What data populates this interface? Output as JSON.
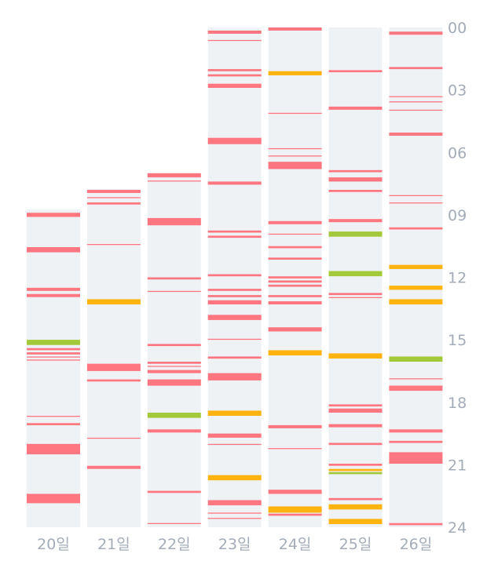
{
  "chart_data": {
    "type": "timeline",
    "y_axis": {
      "ticks": [
        "00",
        "03",
        "06",
        "09",
        "12",
        "15",
        "18",
        "21",
        "24"
      ],
      "range_hours": [
        0,
        24
      ],
      "position": "right"
    },
    "colors": {
      "background": "#eff2f5",
      "red": "#fe7680",
      "orange": "#ffb30f",
      "green": "#a3c93a",
      "label": "#a3acb8"
    },
    "columns": [
      {
        "label": "20일",
        "data_start": 8.75,
        "events": [
          {
            "start": 8.9,
            "end": 9.1,
            "color": "red"
          },
          {
            "start": 10.55,
            "end": 10.8,
            "color": "red"
          },
          {
            "start": 12.5,
            "end": 12.65,
            "color": "red"
          },
          {
            "start": 12.8,
            "end": 12.95,
            "color": "red"
          },
          {
            "start": 15.0,
            "end": 15.25,
            "color": "green"
          },
          {
            "start": 15.4,
            "end": 15.5,
            "color": "red"
          },
          {
            "start": 15.6,
            "end": 15.7,
            "color": "red"
          },
          {
            "start": 15.8,
            "end": 15.85,
            "color": "red"
          },
          {
            "start": 15.95,
            "end": 16.0,
            "color": "red"
          },
          {
            "start": 18.65,
            "end": 18.7,
            "color": "red"
          },
          {
            "start": 19.0,
            "end": 19.1,
            "color": "red"
          },
          {
            "start": 20.0,
            "end": 20.5,
            "color": "red"
          },
          {
            "start": 22.4,
            "end": 22.85,
            "color": "red"
          }
        ]
      },
      {
        "label": "21일",
        "data_start": 7.75,
        "events": [
          {
            "start": 7.8,
            "end": 7.95,
            "color": "red"
          },
          {
            "start": 8.15,
            "end": 8.2,
            "color": "red"
          },
          {
            "start": 8.4,
            "end": 8.5,
            "color": "red"
          },
          {
            "start": 10.4,
            "end": 10.45,
            "color": "red"
          },
          {
            "start": 13.05,
            "end": 13.3,
            "color": "orange"
          },
          {
            "start": 16.15,
            "end": 16.5,
            "color": "red"
          },
          {
            "start": 16.9,
            "end": 17.0,
            "color": "red"
          },
          {
            "start": 19.7,
            "end": 19.75,
            "color": "red"
          },
          {
            "start": 21.05,
            "end": 21.2,
            "color": "red"
          }
        ]
      },
      {
        "label": "22일",
        "data_start": 7.0,
        "events": [
          {
            "start": 7.0,
            "end": 7.2,
            "color": "red"
          },
          {
            "start": 7.35,
            "end": 7.4,
            "color": "red"
          },
          {
            "start": 9.15,
            "end": 9.5,
            "color": "red"
          },
          {
            "start": 12.0,
            "end": 12.1,
            "color": "red"
          },
          {
            "start": 12.65,
            "end": 12.7,
            "color": "red"
          },
          {
            "start": 15.2,
            "end": 15.3,
            "color": "red"
          },
          {
            "start": 16.05,
            "end": 16.15,
            "color": "red"
          },
          {
            "start": 16.25,
            "end": 16.3,
            "color": "red"
          },
          {
            "start": 16.45,
            "end": 16.6,
            "color": "red"
          },
          {
            "start": 16.9,
            "end": 17.2,
            "color": "red"
          },
          {
            "start": 18.5,
            "end": 18.75,
            "color": "green"
          },
          {
            "start": 19.3,
            "end": 19.45,
            "color": "red"
          },
          {
            "start": 22.25,
            "end": 22.35,
            "color": "red"
          },
          {
            "start": 23.8,
            "end": 23.85,
            "color": "red"
          }
        ]
      },
      {
        "label": "23일",
        "data_start": 0.0,
        "events": [
          {
            "start": 0.15,
            "end": 0.3,
            "color": "red"
          },
          {
            "start": 0.6,
            "end": 0.65,
            "color": "red"
          },
          {
            "start": 2.0,
            "end": 2.1,
            "color": "red"
          },
          {
            "start": 2.25,
            "end": 2.35,
            "color": "red"
          },
          {
            "start": 2.7,
            "end": 2.9,
            "color": "red"
          },
          {
            "start": 5.3,
            "end": 5.6,
            "color": "red"
          },
          {
            "start": 7.4,
            "end": 7.55,
            "color": "red"
          },
          {
            "start": 9.75,
            "end": 9.85,
            "color": "red"
          },
          {
            "start": 10.0,
            "end": 10.1,
            "color": "red"
          },
          {
            "start": 11.85,
            "end": 11.95,
            "color": "red"
          },
          {
            "start": 12.55,
            "end": 12.65,
            "color": "red"
          },
          {
            "start": 12.85,
            "end": 12.95,
            "color": "red"
          },
          {
            "start": 13.1,
            "end": 13.3,
            "color": "red"
          },
          {
            "start": 13.8,
            "end": 14.05,
            "color": "red"
          },
          {
            "start": 14.95,
            "end": 15.0,
            "color": "red"
          },
          {
            "start": 15.8,
            "end": 15.9,
            "color": "red"
          },
          {
            "start": 16.6,
            "end": 16.95,
            "color": "red"
          },
          {
            "start": 18.4,
            "end": 18.65,
            "color": "orange"
          },
          {
            "start": 19.5,
            "end": 19.7,
            "color": "red"
          },
          {
            "start": 20.0,
            "end": 20.05,
            "color": "red"
          },
          {
            "start": 21.5,
            "end": 21.75,
            "color": "orange"
          },
          {
            "start": 22.7,
            "end": 22.95,
            "color": "red"
          },
          {
            "start": 23.3,
            "end": 23.35,
            "color": "red"
          },
          {
            "start": 23.55,
            "end": 23.6,
            "color": "red"
          }
        ]
      },
      {
        "label": "24일",
        "data_start": 0.0,
        "events": [
          {
            "start": 0.0,
            "end": 0.15,
            "color": "red"
          },
          {
            "start": 2.1,
            "end": 2.3,
            "color": "orange"
          },
          {
            "start": 4.1,
            "end": 4.15,
            "color": "red"
          },
          {
            "start": 5.8,
            "end": 5.85,
            "color": "red"
          },
          {
            "start": 6.15,
            "end": 6.2,
            "color": "red"
          },
          {
            "start": 6.45,
            "end": 6.8,
            "color": "red"
          },
          {
            "start": 9.3,
            "end": 9.45,
            "color": "red"
          },
          {
            "start": 9.9,
            "end": 9.95,
            "color": "red"
          },
          {
            "start": 10.5,
            "end": 10.6,
            "color": "red"
          },
          {
            "start": 11.05,
            "end": 11.15,
            "color": "red"
          },
          {
            "start": 11.95,
            "end": 12.05,
            "color": "red"
          },
          {
            "start": 12.15,
            "end": 12.25,
            "color": "red"
          },
          {
            "start": 12.35,
            "end": 12.45,
            "color": "red"
          },
          {
            "start": 12.85,
            "end": 12.95,
            "color": "red"
          },
          {
            "start": 13.15,
            "end": 13.3,
            "color": "red"
          },
          {
            "start": 14.4,
            "end": 14.6,
            "color": "red"
          },
          {
            "start": 15.5,
            "end": 15.75,
            "color": "orange"
          },
          {
            "start": 19.1,
            "end": 19.25,
            "color": "red"
          },
          {
            "start": 20.2,
            "end": 20.25,
            "color": "red"
          },
          {
            "start": 22.2,
            "end": 22.4,
            "color": "red"
          },
          {
            "start": 23.0,
            "end": 23.3,
            "color": "orange"
          },
          {
            "start": 23.35,
            "end": 23.45,
            "color": "red"
          }
        ]
      },
      {
        "label": "25일",
        "data_start": 0.0,
        "events": [
          {
            "start": 2.05,
            "end": 2.15,
            "color": "red"
          },
          {
            "start": 3.8,
            "end": 3.95,
            "color": "red"
          },
          {
            "start": 6.85,
            "end": 6.95,
            "color": "red"
          },
          {
            "start": 7.2,
            "end": 7.4,
            "color": "red"
          },
          {
            "start": 7.8,
            "end": 7.9,
            "color": "red"
          },
          {
            "start": 9.2,
            "end": 9.35,
            "color": "red"
          },
          {
            "start": 9.8,
            "end": 10.05,
            "color": "green"
          },
          {
            "start": 11.7,
            "end": 11.95,
            "color": "green"
          },
          {
            "start": 12.75,
            "end": 12.85,
            "color": "red"
          },
          {
            "start": 12.95,
            "end": 13.0,
            "color": "red"
          },
          {
            "start": 15.65,
            "end": 15.9,
            "color": "orange"
          },
          {
            "start": 18.1,
            "end": 18.2,
            "color": "red"
          },
          {
            "start": 18.3,
            "end": 18.5,
            "color": "red"
          },
          {
            "start": 19.05,
            "end": 19.2,
            "color": "red"
          },
          {
            "start": 19.95,
            "end": 20.05,
            "color": "red"
          },
          {
            "start": 20.95,
            "end": 21.05,
            "color": "red"
          },
          {
            "start": 21.2,
            "end": 21.3,
            "color": "orange"
          },
          {
            "start": 21.35,
            "end": 21.45,
            "color": "green"
          },
          {
            "start": 22.6,
            "end": 22.7,
            "color": "red"
          },
          {
            "start": 22.9,
            "end": 23.15,
            "color": "orange"
          },
          {
            "start": 23.6,
            "end": 23.85,
            "color": "orange"
          }
        ]
      },
      {
        "label": "26일",
        "data_start": 0.0,
        "events": [
          {
            "start": 0.2,
            "end": 0.35,
            "color": "red"
          },
          {
            "start": 1.9,
            "end": 2.0,
            "color": "red"
          },
          {
            "start": 3.3,
            "end": 3.35,
            "color": "red"
          },
          {
            "start": 3.55,
            "end": 3.6,
            "color": "red"
          },
          {
            "start": 3.95,
            "end": 4.0,
            "color": "red"
          },
          {
            "start": 5.05,
            "end": 5.2,
            "color": "red"
          },
          {
            "start": 8.05,
            "end": 8.1,
            "color": "red"
          },
          {
            "start": 8.4,
            "end": 8.45,
            "color": "red"
          },
          {
            "start": 9.6,
            "end": 9.7,
            "color": "red"
          },
          {
            "start": 11.4,
            "end": 11.6,
            "color": "orange"
          },
          {
            "start": 12.4,
            "end": 12.6,
            "color": "orange"
          },
          {
            "start": 13.05,
            "end": 13.3,
            "color": "orange"
          },
          {
            "start": 15.8,
            "end": 16.05,
            "color": "green"
          },
          {
            "start": 16.85,
            "end": 16.9,
            "color": "red"
          },
          {
            "start": 17.2,
            "end": 17.45,
            "color": "red"
          },
          {
            "start": 19.3,
            "end": 19.45,
            "color": "red"
          },
          {
            "start": 19.85,
            "end": 19.95,
            "color": "red"
          },
          {
            "start": 20.4,
            "end": 20.95,
            "color": "red"
          },
          {
            "start": 23.8,
            "end": 23.9,
            "color": "red"
          }
        ]
      }
    ]
  }
}
